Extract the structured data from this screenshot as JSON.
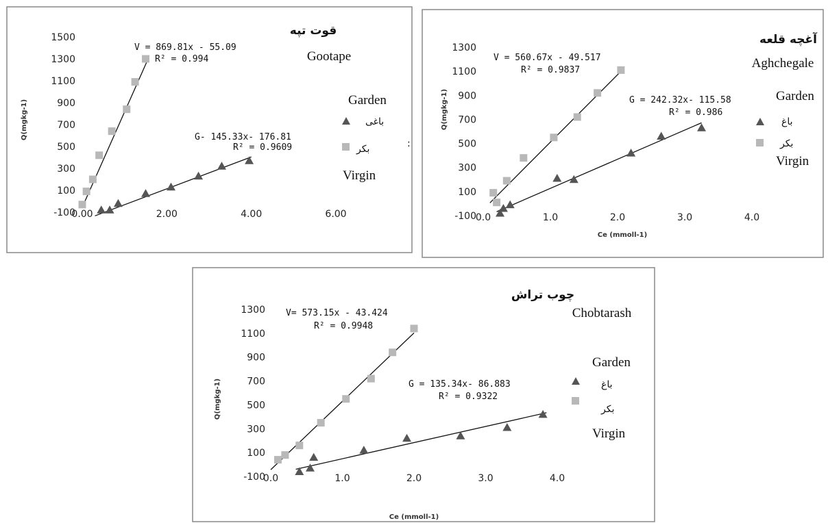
{
  "chart_data": [
    {
      "type": "scatter",
      "title_fa": "قوت تپه",
      "title": "Gootape",
      "xlabel": "",
      "ylabel": "Q(mgkg-1)",
      "xlim": [
        0,
        6
      ],
      "ylim": [
        -100,
        1500
      ],
      "x_ticks": [
        "0.00",
        "2.00",
        "4.00",
        "6.00"
      ],
      "y_ticks": [
        "-100",
        "100",
        "300",
        "500",
        "700",
        "900",
        "1100",
        "1300",
        "1500"
      ],
      "legend": {
        "header": "Garden",
        "garden": "باغی",
        "virgin": "بکر",
        "footer": "Virgin",
        "extra": ":"
      },
      "series": [
        {
          "key": "garden",
          "marker": "triangle",
          "color": "#555555",
          "equation": "G- 145.33x- 176.81",
          "r2": "R² = 0.9609",
          "fit": {
            "slope": 145.33,
            "intercept": -176.81,
            "x0": 0.3,
            "x1": 4.0
          },
          "x": [
            0.45,
            0.65,
            0.85,
            1.5,
            2.1,
            2.75,
            3.3,
            3.95
          ],
          "y": [
            -80,
            -80,
            -20,
            70,
            130,
            230,
            320,
            370
          ]
        },
        {
          "key": "virgin",
          "marker": "square",
          "color": "#b8b8b8",
          "equation": "V = 869.81x - 55.09",
          "r2": "R² = 0.994",
          "fit": {
            "slope": 869.81,
            "intercept": -55.09,
            "x0": 0.0,
            "x1": 1.55
          },
          "x": [
            0.0,
            0.1,
            0.25,
            0.4,
            0.7,
            1.05,
            1.25,
            1.5
          ],
          "y": [
            -30,
            90,
            200,
            420,
            640,
            840,
            1090,
            1300
          ]
        }
      ]
    },
    {
      "type": "scatter",
      "title_fa": "آغچه قلعه",
      "title": "Aghchegale",
      "xlabel": "Ce (mmoll-1)",
      "ylabel": "Q(mgkg-1)",
      "xlim": [
        0,
        4
      ],
      "ylim": [
        -100,
        1300
      ],
      "x_ticks": [
        "0.0",
        "1.0",
        "2.0",
        "3.0",
        "4.0"
      ],
      "y_ticks": [
        "-100",
        "100",
        "300",
        "500",
        "700",
        "900",
        "1100",
        "1300"
      ],
      "legend": {
        "header": "Garden",
        "garden": "باغ",
        "virgin": "بکر",
        "footer": "Virgin"
      },
      "series": [
        {
          "key": "garden",
          "marker": "triangle",
          "color": "#555555",
          "equation": "G = 242.32x- 115.58",
          "r2": "R² = 0.986",
          "fit": {
            "slope": 242.32,
            "intercept": -115.58,
            "x0": 0.2,
            "x1": 3.25
          },
          "x": [
            0.25,
            0.3,
            0.4,
            1.1,
            1.35,
            2.2,
            2.65,
            3.25
          ],
          "y": [
            -80,
            -40,
            -10,
            210,
            200,
            420,
            560,
            630
          ]
        },
        {
          "key": "virgin",
          "marker": "square",
          "color": "#b8b8b8",
          "equation": "V = 560.67x - 49.517",
          "r2": "R² = 0.9837",
          "fit": {
            "slope": 560.67,
            "intercept": -49.517,
            "x0": 0.1,
            "x1": 2.05
          },
          "x": [
            0.15,
            0.2,
            0.35,
            0.6,
            1.05,
            1.4,
            1.7,
            2.05
          ],
          "y": [
            90,
            10,
            190,
            380,
            550,
            720,
            920,
            1110
          ]
        }
      ]
    },
    {
      "type": "scatter",
      "title_fa": "چوب تراش",
      "title": "Chobtarash",
      "xlabel": "Ce (mmoll-1)",
      "ylabel": "Q(mgkg-1)",
      "xlim": [
        0,
        4
      ],
      "ylim": [
        -100,
        1300
      ],
      "x_ticks": [
        "0.0",
        "1.0",
        "2.0",
        "3.0",
        "4.0"
      ],
      "y_ticks": [
        "-100",
        "100",
        "300",
        "500",
        "700",
        "900",
        "1100",
        "1300"
      ],
      "legend": {
        "header": "Garden",
        "garden": "باغ",
        "virgin": "بکر",
        "footer": "Virgin"
      },
      "series": [
        {
          "key": "garden",
          "marker": "triangle",
          "color": "#555555",
          "equation": "G = 135.34x- 86.883",
          "r2": "R² = 0.9322",
          "fit": {
            "slope": 135.34,
            "intercept": -86.883,
            "x0": 0.35,
            "x1": 3.85
          },
          "x": [
            0.4,
            0.55,
            0.6,
            1.3,
            1.9,
            2.65,
            3.3,
            3.8
          ],
          "y": [
            -60,
            -30,
            60,
            120,
            220,
            240,
            310,
            420
          ]
        },
        {
          "key": "virgin",
          "marker": "square",
          "color": "#b8b8b8",
          "equation": "V= 573.15x - 43.424",
          "r2": "R² = 0.9948",
          "fit": {
            "slope": 573.15,
            "intercept": -43.424,
            "x0": 0.0,
            "x1": 2.0
          },
          "x": [
            0.1,
            0.2,
            0.4,
            0.7,
            1.05,
            1.4,
            1.7,
            2.0
          ],
          "y": [
            40,
            80,
            160,
            350,
            550,
            720,
            940,
            1140
          ]
        }
      ]
    }
  ]
}
